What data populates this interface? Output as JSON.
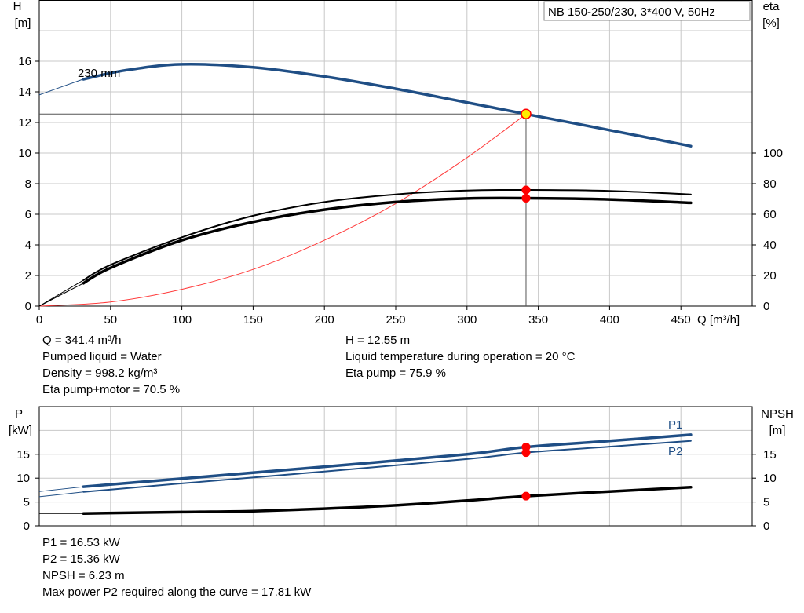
{
  "title": "NB 150-250/230, 3*400 V, 50Hz",
  "top_info_left": [
    "Q = 341.4 m³/h",
    "Pumped liquid = Water",
    "Density = 998.2 kg/m³",
    "Eta pump+motor = 70.5 %"
  ],
  "top_info_right": [
    "H = 12.55 m",
    "Liquid temperature during operation = 20 °C",
    "Eta pump = 75.9 %"
  ],
  "bottom_info": [
    "P1 = 16.53 kW",
    "P2 = 15.36 kW",
    "NPSH = 6.23 m",
    "Max power P2 required along the curve = 17.81 kW"
  ],
  "colors": {
    "blue": "#1f4e85",
    "black": "#000000",
    "red": "#ff0000",
    "grid": "#c8c8c8",
    "system": "#ff3b3b",
    "marker_fill": "#ffee00"
  },
  "chart_data": [
    {
      "type": "line",
      "xlabel": "Q [m³/h]",
      "ylabel_left": [
        "H",
        "[m]"
      ],
      "ylabel_right": [
        "eta",
        "[%]"
      ],
      "xlim": [
        0,
        500
      ],
      "ylim_left": [
        0,
        20
      ],
      "ylim_right": [
        0,
        200
      ],
      "x_ticks": [
        0,
        50,
        100,
        150,
        200,
        250,
        300,
        350,
        400,
        450
      ],
      "y_ticks_left": [
        0,
        2,
        4,
        6,
        8,
        10,
        12,
        14,
        16
      ],
      "y_ticks_right": [
        0,
        20,
        40,
        60,
        80,
        100
      ],
      "grid": true,
      "curve_label": "230 mm",
      "series": [
        {
          "name": "H",
          "axis": "left",
          "x": [
            0,
            30,
            60,
            100,
            150,
            200,
            250,
            300,
            341.4,
            400,
            457
          ],
          "y": [
            13.8,
            14.8,
            15.4,
            15.8,
            15.6,
            15.0,
            14.2,
            13.3,
            12.55,
            11.5,
            10.45
          ]
        },
        {
          "name": "eta pump",
          "axis": "right",
          "x": [
            0,
            31,
            50,
            100,
            150,
            200,
            250,
            300,
            341.4,
            400,
            457
          ],
          "y": [
            0,
            17,
            27,
            45,
            59,
            68,
            73,
            75.5,
            75.9,
            75.3,
            73
          ]
        },
        {
          "name": "eta pump+motor",
          "axis": "right",
          "x": [
            0,
            31,
            50,
            100,
            150,
            200,
            250,
            300,
            341.4,
            400,
            457
          ],
          "y": [
            0,
            15,
            25,
            43,
            55,
            63,
            68,
            70.3,
            70.5,
            69.7,
            67.5
          ]
        },
        {
          "name": "system curve",
          "axis": "left",
          "x": [
            0,
            50,
            100,
            150,
            200,
            250,
            300,
            341.4
          ],
          "y": [
            0,
            0.27,
            1.1,
            2.4,
            4.3,
            6.7,
            9.7,
            12.55
          ]
        }
      ],
      "operating_point": {
        "Q": 341.4,
        "H": 12.55,
        "eta_pump": 75.9,
        "eta_total": 70.5
      }
    },
    {
      "type": "line",
      "ylabel_left": [
        "P",
        "[kW]"
      ],
      "ylabel_right": [
        "NPSH",
        "[m]"
      ],
      "xlim": [
        0,
        500
      ],
      "ylim_left": [
        0,
        25
      ],
      "ylim_right": [
        0,
        25
      ],
      "y_ticks_left": [
        0,
        5,
        10,
        15
      ],
      "y_ticks_right": [
        0,
        5,
        10,
        15
      ],
      "grid": true,
      "series": [
        {
          "name": "P1",
          "axis": "left",
          "x": [
            0,
            31,
            100,
            200,
            300,
            341.4,
            400,
            457
          ],
          "y": [
            7.2,
            8.2,
            9.9,
            12.4,
            15.0,
            16.53,
            17.8,
            19.1
          ]
        },
        {
          "name": "P2",
          "axis": "left",
          "x": [
            0,
            31,
            100,
            200,
            300,
            341.4,
            400,
            457
          ],
          "y": [
            6.1,
            7.1,
            8.9,
            11.4,
            14.0,
            15.36,
            16.6,
            17.81
          ]
        },
        {
          "name": "NPSH",
          "axis": "right",
          "x": [
            0,
            31,
            100,
            150,
            200,
            250,
            300,
            341.4,
            400,
            457
          ],
          "y": [
            2.6,
            2.6,
            2.9,
            3.1,
            3.6,
            4.3,
            5.3,
            6.23,
            7.2,
            8.1
          ]
        }
      ],
      "operating_point": {
        "Q": 341.4,
        "P1": 16.53,
        "P2": 15.36,
        "NPSH": 6.23
      }
    }
  ]
}
